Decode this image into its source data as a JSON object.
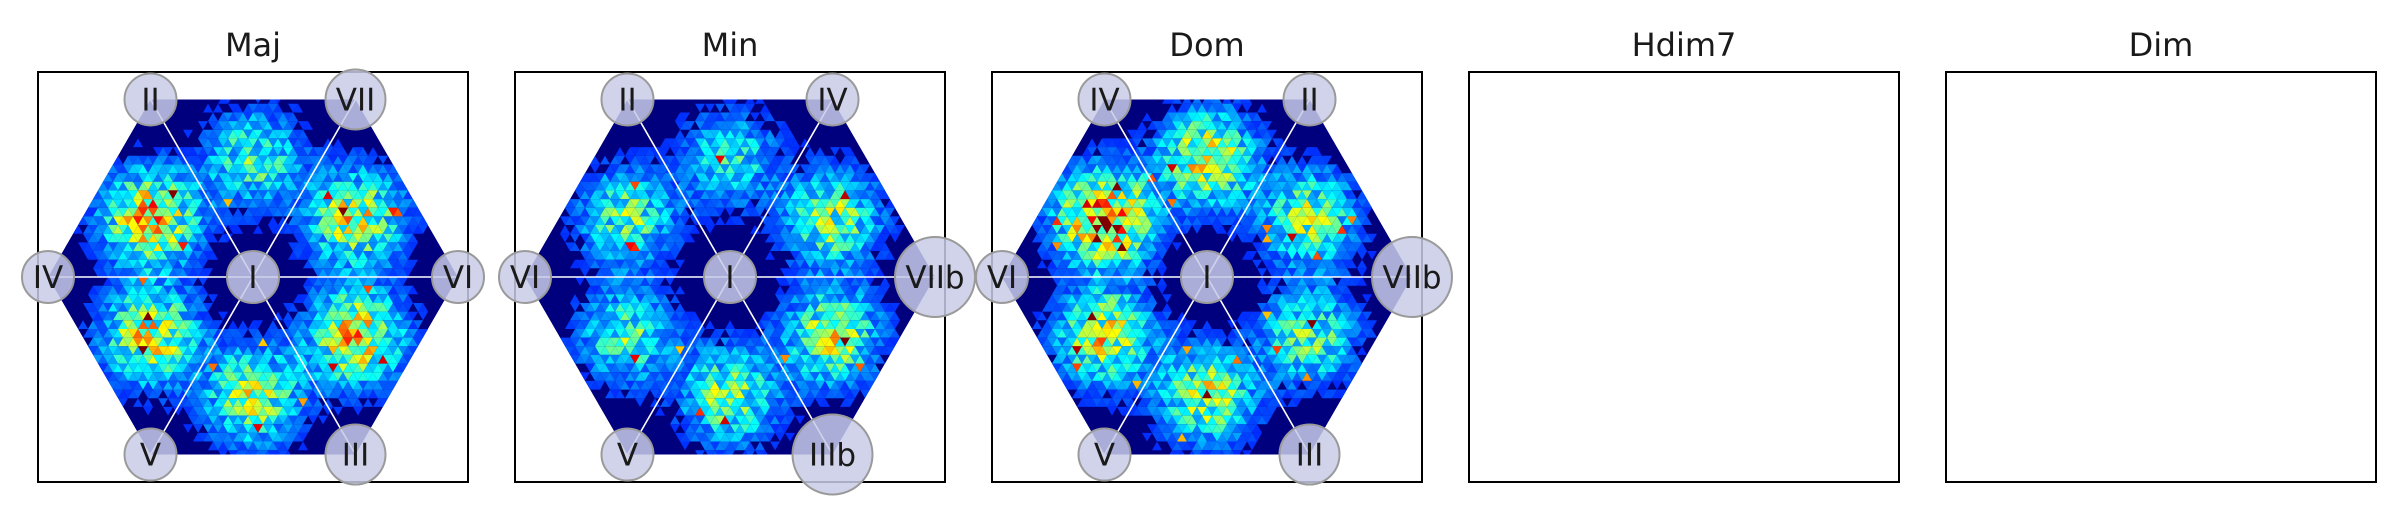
{
  "chart_data": [
    {
      "type": "heatmap",
      "title": "Maj",
      "center_label": "I",
      "vertex_labels": [
        "II",
        "VII",
        "VI",
        "III",
        "V",
        "IV"
      ],
      "sector_hotspots": [
        0.42,
        0.6,
        0.68,
        0.55,
        0.62,
        0.7
      ],
      "grid": false,
      "colormap": "jet"
    },
    {
      "type": "heatmap",
      "title": "Min",
      "center_label": "I",
      "vertex_labels": [
        "II",
        "IV",
        "VIIb",
        "IIIb",
        "V",
        "VI"
      ],
      "sector_hotspots": [
        0.35,
        0.5,
        0.55,
        0.5,
        0.42,
        0.45
      ],
      "grid": false,
      "colormap": "jet"
    },
    {
      "type": "heatmap",
      "title": "Dom",
      "center_label": "I",
      "vertex_labels": [
        "IV",
        "II",
        "VIIb",
        "III",
        "V",
        "VI"
      ],
      "sector_hotspots": [
        0.62,
        0.5,
        0.45,
        0.55,
        0.6,
        0.85
      ],
      "grid": false,
      "colormap": "jet"
    },
    {
      "type": "heatmap",
      "title": "Hdim7",
      "center_label": "",
      "vertex_labels": [],
      "sector_hotspots": [],
      "grid": false,
      "colormap": "jet"
    },
    {
      "type": "heatmap",
      "title": "Dim",
      "center_label": "",
      "vertex_labels": [],
      "sector_hotspots": [],
      "grid": false,
      "colormap": "jet"
    }
  ],
  "colors": {
    "background": "#00007f",
    "frame": "#000000",
    "divider": "#ffffff",
    "label_circle_fill": "#c8cbe6",
    "label_circle_stroke": "#9a9a9a",
    "label_text": "#1a1a1a"
  }
}
